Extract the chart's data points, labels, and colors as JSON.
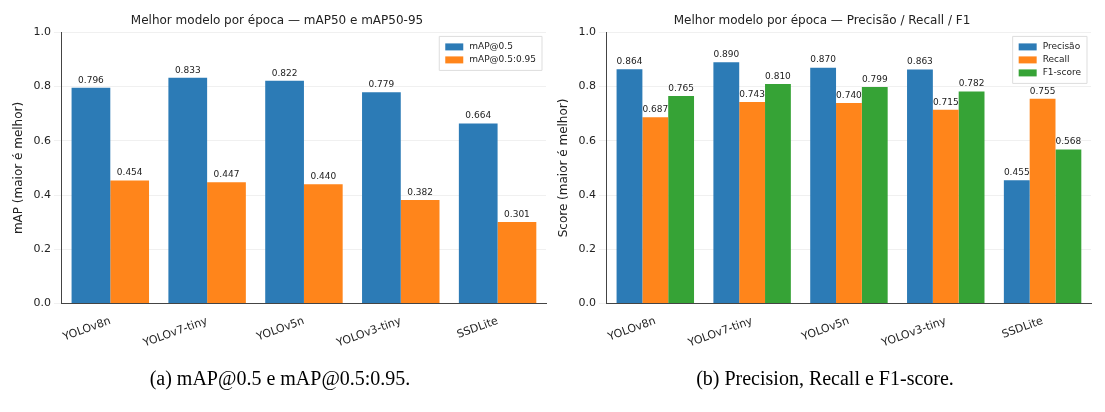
{
  "chart_data": [
    {
      "type": "bar",
      "title": "Melhor modelo por época — mAP50 e mAP50-95",
      "ylabel": "mAP (maior é melhor)",
      "categories": [
        "YOLOv8n",
        "YOLOv7-tiny",
        "YOLOv5n",
        "YOLOv3-tiny",
        "SSDLite"
      ],
      "series": [
        {
          "name": "mAP@0.5",
          "color": "#2c7bb6",
          "values": [
            0.796,
            0.833,
            0.822,
            0.779,
            0.664
          ],
          "value_labels": [
            "0.796",
            "0.833",
            "0.822",
            "0.779",
            "0.664"
          ]
        },
        {
          "name": "mAP@0.5:0.95",
          "color": "#ff851b",
          "values": [
            0.454,
            0.447,
            0.44,
            0.382,
            0.301
          ],
          "value_labels": [
            "0.454",
            "0.447",
            "0.440",
            "0.382",
            "0.301"
          ]
        }
      ],
      "ylim": [
        0,
        1
      ],
      "yticks": [
        {
          "value": 0,
          "label": "0.0"
        },
        {
          "value": 0.2,
          "label": "0.2"
        },
        {
          "value": 0.4,
          "label": "0.4"
        },
        {
          "value": 0.6,
          "label": "0.6"
        },
        {
          "value": 0.8,
          "label": "0.8"
        },
        {
          "value": 1,
          "label": "1.0"
        }
      ],
      "grid": "y",
      "legend": "top right",
      "annotations": [
        "(a)  mAP@0.5 e mAP@0.5:0.95."
      ]
    },
    {
      "type": "bar",
      "title": "Melhor modelo por época — Precisão / Recall / F1",
      "ylabel": "Score (maior é melhor)",
      "categories": [
        "YOLOv8n",
        "YOLOv7-tiny",
        "YOLOv5n",
        "YOLOv3-tiny",
        "SSDLite"
      ],
      "series": [
        {
          "name": "Precisão",
          "color": "#2c7bb6",
          "values": [
            0.864,
            0.89,
            0.87,
            0.863,
            0.455
          ],
          "value_labels": [
            "0.864",
            "0.890",
            "0.870",
            "0.863",
            "0.455"
          ]
        },
        {
          "name": "Recall",
          "color": "#ff851b",
          "values": [
            0.687,
            0.743,
            0.74,
            0.715,
            0.755
          ],
          "value_labels": [
            "0.687",
            "0.743",
            "0.740",
            "0.715",
            "0.755"
          ]
        },
        {
          "name": "F1-score",
          "color": "#36a336",
          "values": [
            0.765,
            0.81,
            0.799,
            0.782,
            0.568
          ],
          "value_labels": [
            "0.765",
            "0.810",
            "0.799",
            "0.782",
            "0.568"
          ]
        }
      ],
      "ylim": [
        0,
        1
      ],
      "yticks": [
        {
          "value": 0,
          "label": "0.0"
        },
        {
          "value": 0.2,
          "label": "0.2"
        },
        {
          "value": 0.4,
          "label": "0.4"
        },
        {
          "value": 0.6,
          "label": "0.6"
        },
        {
          "value": 0.8,
          "label": "0.8"
        },
        {
          "value": 1,
          "label": "1.0"
        }
      ],
      "grid": "y",
      "legend": "top right",
      "annotations": [
        "(b)  Precision, Recall e F1-score."
      ]
    }
  ]
}
